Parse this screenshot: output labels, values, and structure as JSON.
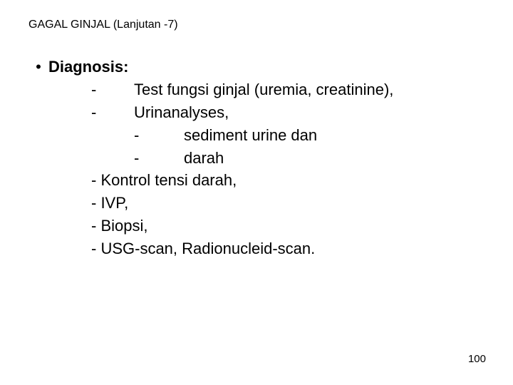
{
  "title": "GAGAL GINJAL (Lanjutan -7)",
  "heading": "Diagnosis:",
  "lines": {
    "d1": "Test fungsi ginjal (uremia, creatinine),",
    "d2": "Urinanalyses,",
    "s1": "sediment urine dan",
    "s2": "darah",
    "p1": "- Kontrol tensi darah,",
    "p2": "- IVP,",
    "p3": "- Biopsi,",
    "p4": "- USG-scan, Radionucleid-scan."
  },
  "dash": "-",
  "bullet": "•",
  "pageNumber": "100",
  "colors": {
    "text": "#000000",
    "background": "#ffffff"
  },
  "fontSizes": {
    "title": 16,
    "body": 22,
    "pageNum": 15
  }
}
